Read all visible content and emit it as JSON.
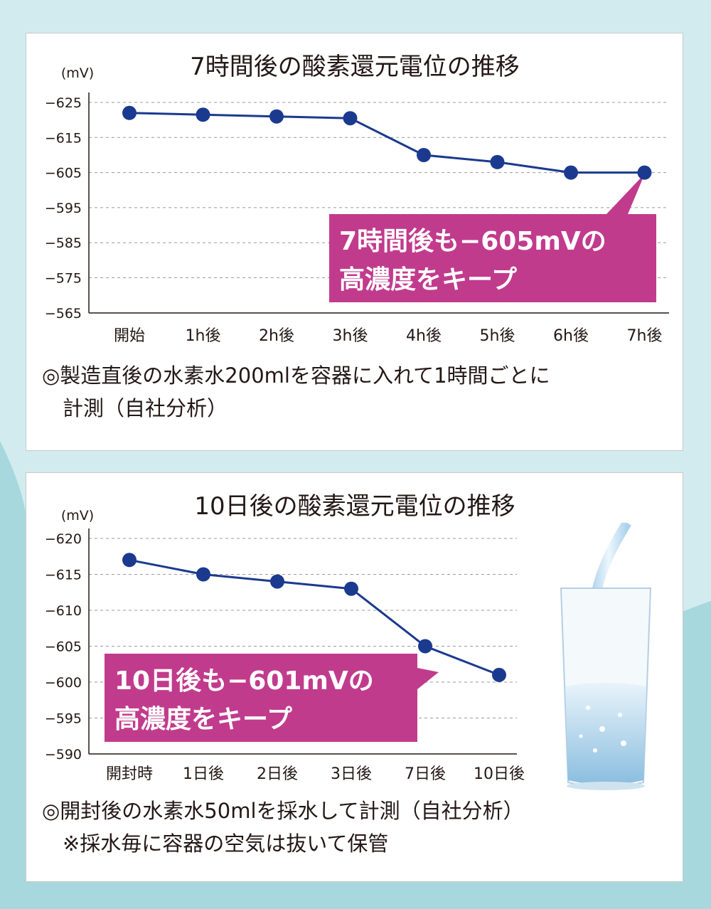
{
  "colors": {
    "line": "#1b3a8f",
    "callout": "#c13b8d",
    "grid": "#9a9a9a",
    "background": "#d2ebee",
    "accent_bg": "#a6d8dd"
  },
  "chart_data": [
    {
      "type": "line",
      "title": "7時間後の酸素還元電位の推移",
      "ylabel": "(mV)",
      "categories": [
        "開始",
        "1h後",
        "2h後",
        "3h後",
        "4h後",
        "5h後",
        "6h後",
        "7h後"
      ],
      "values": [
        -622,
        -621.5,
        -621,
        -620.5,
        -610,
        -608,
        -605,
        -605
      ],
      "yticks": [
        "−625",
        "−615",
        "−605",
        "−595",
        "−585",
        "−575",
        "−565"
      ],
      "ylim": [
        -625,
        -565
      ],
      "grid": true,
      "callout": {
        "line1": "7時間後も−605mVの",
        "line2": "高濃度をキープ"
      },
      "note": {
        "line1": "◎製造直後の水素水200mlを容器に入れて1時間ごとに",
        "line2": "　計測（自社分析）"
      }
    },
    {
      "type": "line",
      "title": "10日後の酸素還元電位の推移",
      "ylabel": "(mV)",
      "categories": [
        "開封時",
        "1日後",
        "2日後",
        "3日後",
        "7日後",
        "10日後"
      ],
      "values": [
        -617,
        -615,
        -614,
        -613,
        -605,
        -601
      ],
      "yticks": [
        "−620",
        "−615",
        "−610",
        "−605",
        "−600",
        "−595",
        "−590"
      ],
      "ylim": [
        -620,
        -590
      ],
      "grid": true,
      "callout": {
        "line1": "10日後も−601mVの",
        "line2": "高濃度をキープ"
      },
      "note": {
        "line1": "◎開封後の水素水50mlを採水して計測（自社分析）",
        "line2": "　※採水毎に容器の空気は抜いて保管"
      }
    }
  ]
}
